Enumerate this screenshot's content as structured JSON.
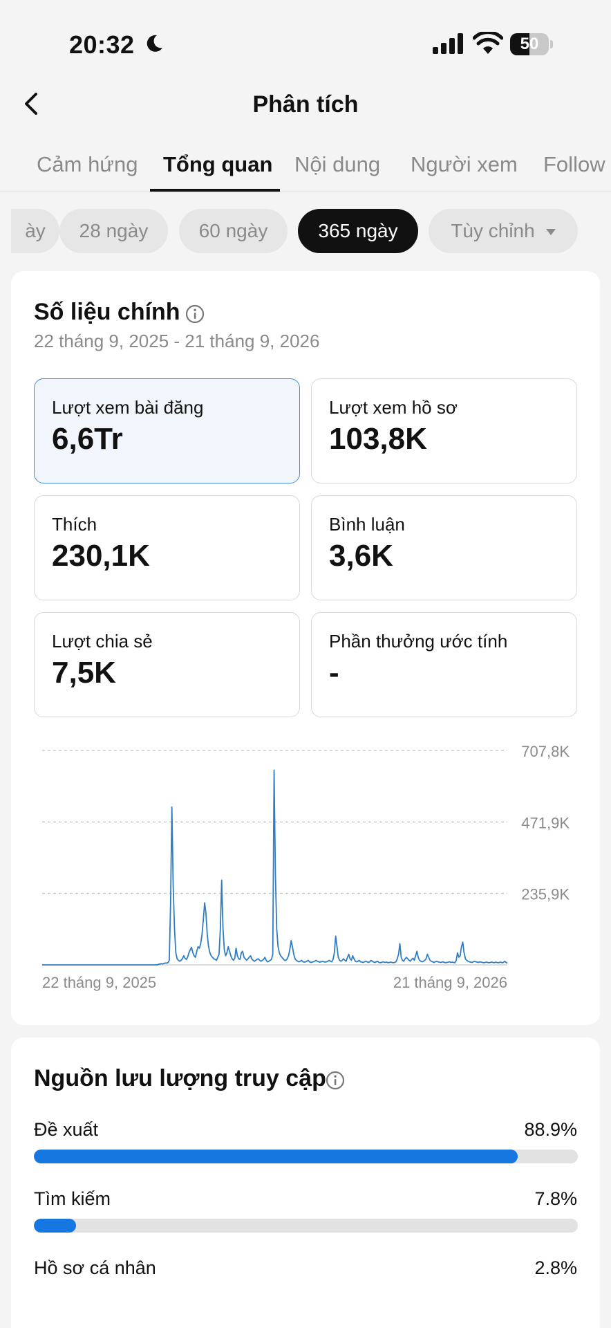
{
  "status_bar": {
    "time": "20:32",
    "battery": "50",
    "battery_level": 0.5
  },
  "header": {
    "title": "Phân tích"
  },
  "tabs": [
    {
      "label": "Cảm hứng",
      "active": false
    },
    {
      "label": "Tổng quan",
      "active": true
    },
    {
      "label": "Nội dung",
      "active": false
    },
    {
      "label": "Người xem",
      "active": false
    },
    {
      "label": "Follow",
      "active": false
    }
  ],
  "periods": [
    {
      "label": "ày",
      "active": false
    },
    {
      "label": "28 ngày",
      "active": false
    },
    {
      "label": "60 ngày",
      "active": false
    },
    {
      "label": "365 ngày",
      "active": true
    },
    {
      "label": "Tùy chỉnh",
      "active": false
    }
  ],
  "key_metrics": {
    "title": "Số liệu chính",
    "date_range": "22 tháng 9, 2025 - 21 tháng 9, 2026",
    "tiles": [
      {
        "label": "Lượt xem bài đăng",
        "value": "6,6Tr",
        "selected": true
      },
      {
        "label": "Lượt xem hồ sơ",
        "value": "103,8K",
        "selected": false
      },
      {
        "label": "Thích",
        "value": "230,1K",
        "selected": false
      },
      {
        "label": "Bình luận",
        "value": "3,6K",
        "selected": false
      },
      {
        "label": "Lượt chia sẻ",
        "value": "7,5K",
        "selected": false
      },
      {
        "label": "Phần thưởng ước tính",
        "value": "-",
        "selected": false
      }
    ]
  },
  "chart_data": {
    "type": "line",
    "title": "",
    "xlabel": "",
    "ylabel": "",
    "x_tick_labels": [
      "22 tháng 9, 2025",
      "21 tháng 9, 2026"
    ],
    "y_tick_labels": [
      "235,9K",
      "471,9K",
      "707,8K"
    ],
    "y_ticks": [
      235900,
      471900,
      707800
    ],
    "ylim": [
      0,
      707800
    ],
    "x_range": [
      "2025-09-22",
      "2026-09-21"
    ],
    "grid": true,
    "line_color": "#2f7dc4",
    "series": [
      {
        "values": [
          0,
          0,
          0,
          0,
          0,
          0,
          0,
          0,
          0,
          0,
          0,
          0,
          0,
          0,
          0,
          0,
          0,
          0,
          0,
          0,
          0,
          0,
          0,
          0,
          0,
          0,
          0,
          0,
          0,
          0,
          0,
          0,
          0,
          0,
          0,
          0,
          0,
          0,
          0,
          0,
          0,
          0,
          0,
          0,
          0,
          0,
          0,
          0,
          0,
          0,
          0,
          0,
          0,
          0,
          0,
          0,
          0,
          0,
          0,
          0,
          0,
          0,
          0,
          0,
          0,
          0,
          0,
          0,
          0,
          0,
          0,
          0,
          0,
          0,
          0,
          0,
          0,
          0,
          0,
          0,
          0,
          0,
          0,
          0,
          0,
          0,
          0,
          0,
          0,
          2000,
          3000,
          4000,
          3000,
          5000,
          6000,
          6000,
          7000,
          15000,
          200000,
          521000,
          260000,
          120000,
          40000,
          20000,
          15000,
          12000,
          15000,
          20000,
          30000,
          22000,
          18000,
          25000,
          40000,
          50000,
          58000,
          40000,
          30000,
          25000,
          45000,
          60000,
          55000,
          70000,
          100000,
          150000,
          205000,
          170000,
          100000,
          60000,
          40000,
          30000,
          25000,
          20000,
          18000,
          15000,
          25000,
          35000,
          120000,
          280000,
          120000,
          50000,
          30000,
          40000,
          60000,
          45000,
          30000,
          20000,
          15000,
          22000,
          55000,
          30000,
          20000,
          18000,
          40000,
          45000,
          25000,
          20000,
          15000,
          20000,
          25000,
          30000,
          20000,
          15000,
          12000,
          15000,
          18000,
          20000,
          15000,
          12000,
          15000,
          18000,
          25000,
          15000,
          10000,
          12000,
          15000,
          18000,
          35000,
          643000,
          300000,
          120000,
          60000,
          40000,
          30000,
          25000,
          20000,
          15000,
          15000,
          20000,
          30000,
          50000,
          80000,
          60000,
          35000,
          20000,
          15000,
          12000,
          10000,
          12000,
          15000,
          10000,
          9000,
          10000,
          12000,
          15000,
          10000,
          8000,
          9000,
          10000,
          12000,
          15000,
          12000,
          10000,
          9000,
          10000,
          12000,
          10000,
          9000,
          10000,
          12000,
          15000,
          12000,
          10000,
          18000,
          40000,
          95000,
          60000,
          25000,
          15000,
          12000,
          15000,
          20000,
          15000,
          12000,
          25000,
          35000,
          20000,
          15000,
          30000,
          20000,
          12000,
          10000,
          12000,
          15000,
          10000,
          9000,
          8000,
          10000,
          12000,
          10000,
          8000,
          10000,
          15000,
          12000,
          9000,
          8000,
          10000,
          12000,
          8000,
          7000,
          8000,
          10000,
          9000,
          8000,
          9000,
          7000,
          8000,
          9000,
          8000,
          7000,
          8000,
          10000,
          20000,
          35000,
          70000,
          25000,
          15000,
          12000,
          20000,
          25000,
          20000,
          15000,
          12000,
          18000,
          22000,
          15000,
          30000,
          45000,
          25000,
          15000,
          12000,
          10000,
          12000,
          15000,
          20000,
          35000,
          25000,
          15000,
          12000,
          10000,
          8000,
          10000,
          12000,
          10000,
          9000,
          8000,
          9000,
          10000,
          8000,
          7000,
          8000,
          9000,
          10000,
          8000,
          9000,
          8000,
          7000,
          15000,
          40000,
          25000,
          30000,
          60000,
          75000,
          40000,
          20000,
          15000,
          12000,
          10000,
          9000,
          8000,
          10000,
          12000,
          10000,
          9000,
          8000,
          10000,
          9000,
          8000,
          7000,
          8000,
          9000,
          8000,
          7000,
          8000,
          9000,
          8000,
          7000,
          9000,
          8000,
          7000,
          8000,
          9000,
          7000,
          8000,
          12000,
          8000,
          6000
        ]
      }
    ]
  },
  "traffic": {
    "title": "Nguồn lưu lượng truy cập",
    "sources": [
      {
        "label": "Đề xuất",
        "value": "88.9%",
        "fraction": 0.889
      },
      {
        "label": "Tìm kiếm",
        "value": "7.8%",
        "fraction": 0.078
      },
      {
        "label": "Hồ sơ cá nhân",
        "value": "2.8%",
        "fraction": 0.028
      }
    ]
  }
}
